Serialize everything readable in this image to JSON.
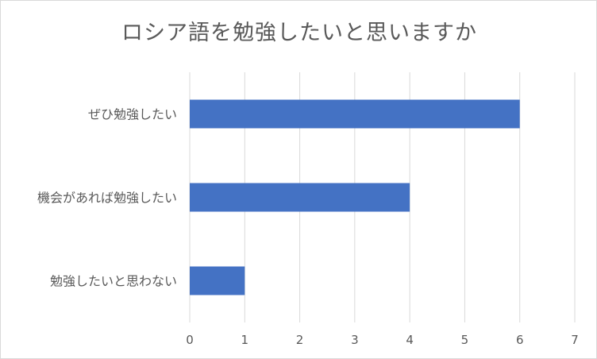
{
  "chart_data": {
    "type": "bar",
    "orientation": "horizontal",
    "title": "ロシア語を勉強したいと思いますか",
    "categories": [
      "ぜひ勉強したい",
      "機会があれば勉強したい",
      "勉強したいと思わない"
    ],
    "values": [
      6,
      4,
      1
    ],
    "xlim": [
      0,
      7
    ],
    "xticks": [
      "0",
      "1",
      "2",
      "3",
      "4",
      "5",
      "6",
      "7"
    ],
    "grid": true,
    "legend": "none",
    "colors": {
      "bar": "#4472c4",
      "grid": "#d9d9d9",
      "text": "#595959"
    }
  }
}
